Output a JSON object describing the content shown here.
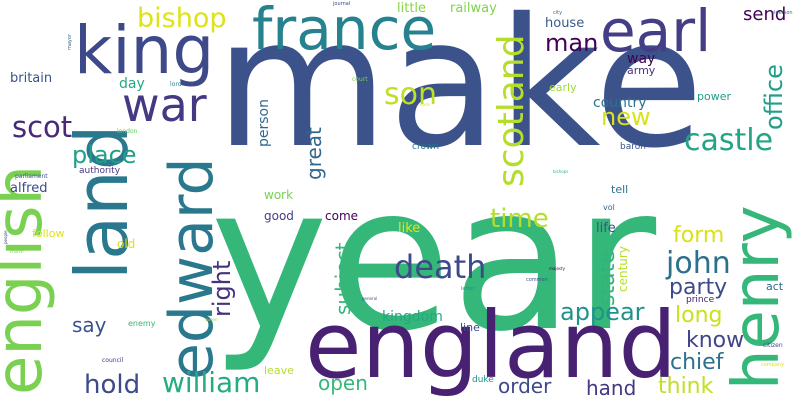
{
  "words": [
    {
      "text": "make",
      "color": "#3b528b"
    },
    {
      "text": "year",
      "color": "#35b779"
    },
    {
      "text": "england",
      "color": "#482173"
    },
    {
      "text": "english",
      "color": "#7ad151"
    },
    {
      "text": "king",
      "color": "#3e4989"
    },
    {
      "text": "france",
      "color": "#26828e"
    },
    {
      "text": "earl",
      "color": "#433e85"
    },
    {
      "text": "henry",
      "color": "#35b779"
    },
    {
      "text": "edward",
      "color": "#2a788e"
    },
    {
      "text": "land",
      "color": "#2a788e"
    },
    {
      "text": "war",
      "color": "#443983"
    },
    {
      "text": "scotland",
      "color": "#b5de2b"
    },
    {
      "text": "william",
      "color": "#25ac82"
    },
    {
      "text": "john",
      "color": "#2d708e"
    },
    {
      "text": "death",
      "color": "#3e4989"
    },
    {
      "text": "castle",
      "color": "#21a585"
    },
    {
      "text": "bishop",
      "color": "#dde318"
    },
    {
      "text": "scot",
      "color": "#482878"
    },
    {
      "text": "son",
      "color": "#bddf26"
    },
    {
      "text": "time",
      "color": "#b5de2b"
    },
    {
      "text": "hold",
      "color": "#3e4989"
    },
    {
      "text": "place",
      "color": "#1fa088"
    },
    {
      "text": "appear",
      "color": "#20928c"
    },
    {
      "text": "new",
      "color": "#d8e219"
    },
    {
      "text": "man",
      "color": "#440154"
    },
    {
      "text": "office",
      "color": "#1f9e89"
    },
    {
      "text": "state",
      "color": "#2fb47c"
    },
    {
      "text": "party",
      "color": "#3e4989"
    },
    {
      "text": "long",
      "color": "#cae11f"
    },
    {
      "text": "know",
      "color": "#404688"
    },
    {
      "text": "chief",
      "color": "#2c728e"
    },
    {
      "text": "think",
      "color": "#c2df23"
    },
    {
      "text": "order",
      "color": "#3f4889"
    },
    {
      "text": "hand",
      "color": "#453781"
    },
    {
      "text": "open",
      "color": "#35b779"
    },
    {
      "text": "form",
      "color": "#d8e219"
    },
    {
      "text": "right",
      "color": "#46337e"
    },
    {
      "text": "great",
      "color": "#31688e"
    },
    {
      "text": "subject",
      "color": "#35b779"
    },
    {
      "text": "say",
      "color": "#3b528b"
    },
    {
      "text": "kingdom",
      "color": "#22a884"
    },
    {
      "text": "send",
      "color": "#440154"
    },
    {
      "text": "country",
      "color": "#2c728e"
    },
    {
      "text": "house",
      "color": "#38588c"
    },
    {
      "text": "way",
      "color": "#440154"
    },
    {
      "text": "army",
      "color": "#46327e"
    },
    {
      "text": "power",
      "color": "#1f9e89"
    },
    {
      "text": "alfred",
      "color": "#3e4989"
    },
    {
      "text": "britain",
      "color": "#3b528b"
    },
    {
      "text": "day",
      "color": "#22a884"
    },
    {
      "text": "little",
      "color": "#89d548"
    },
    {
      "text": "railway",
      "color": "#81d34d"
    },
    {
      "text": "early",
      "color": "#a0da39"
    },
    {
      "text": "person",
      "color": "#31688e"
    },
    {
      "text": "work",
      "color": "#7ad151"
    },
    {
      "text": "good",
      "color": "#433e85"
    },
    {
      "text": "come",
      "color": "#440154"
    },
    {
      "text": "like",
      "color": "#e5e419"
    },
    {
      "text": "life",
      "color": "#3b528b"
    },
    {
      "text": "century",
      "color": "#b5de2b"
    },
    {
      "text": "follow",
      "color": "#dde318"
    },
    {
      "text": "old",
      "color": "#dde318"
    },
    {
      "text": "tell",
      "color": "#2d708e"
    },
    {
      "text": "vol",
      "color": "#31688e"
    },
    {
      "text": "line",
      "color": "#3e4989"
    },
    {
      "text": "crown",
      "color": "#2c728e"
    },
    {
      "text": "baron",
      "color": "#3b528b"
    },
    {
      "text": "authority",
      "color": "#443983"
    },
    {
      "text": "leave",
      "color": "#b5de2b"
    },
    {
      "text": "duke",
      "color": "#20928c"
    },
    {
      "text": "act",
      "color": "#31688e"
    },
    {
      "text": "prince",
      "color": "#482173"
    },
    {
      "text": "enemy",
      "color": "#35b779"
    },
    {
      "text": "parliament",
      "color": "#3b528b"
    },
    {
      "text": "london",
      "color": "#5ec962"
    },
    {
      "text": "lord",
      "color": "#26828e"
    },
    {
      "text": "court",
      "color": "#7ad151"
    },
    {
      "text": "city",
      "color": "#31688e"
    },
    {
      "text": "journal",
      "color": "#404688"
    },
    {
      "text": "alderson",
      "color": "#2c728e"
    },
    {
      "text": "bishops",
      "color": "#35b779"
    },
    {
      "text": "council",
      "color": "#46327e"
    },
    {
      "text": "citizen",
      "color": "#404688"
    },
    {
      "text": "company",
      "color": "#dde318"
    },
    {
      "text": "majesty",
      "color": "#440154"
    },
    {
      "text": "general",
      "color": "#3b528b"
    },
    {
      "text": "letter",
      "color": "#20928c"
    },
    {
      "text": "common",
      "color": "#3b528b"
    },
    {
      "text": "mayor",
      "color": "#31688e"
    },
    {
      "text": "queen",
      "color": "#a0da39"
    },
    {
      "text": "earls",
      "color": "#dde318"
    },
    {
      "text": "people",
      "color": "#3b528b"
    },
    {
      "text": "church",
      "color": "#7ad151"
    }
  ]
}
